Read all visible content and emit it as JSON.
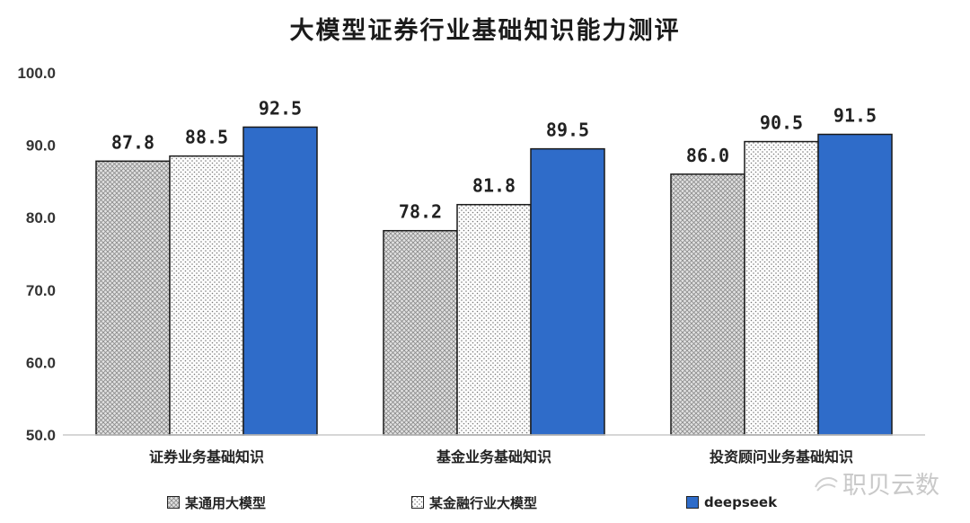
{
  "chart_data": {
    "type": "bar",
    "title": "大模型证券行业基础知识能力测评",
    "categories": [
      "证券业务基础知识",
      "基金业务基础知识",
      "投资顾问业务基础知识"
    ],
    "series": [
      {
        "name": "某通用大模型",
        "values": [
          87.8,
          78.2,
          86.0
        ],
        "color": "#d6d6d6",
        "pattern": "crosshatch"
      },
      {
        "name": "某金融行业大模型",
        "values": [
          88.5,
          81.8,
          90.5
        ],
        "color": "#ffffff",
        "pattern": "dots"
      },
      {
        "name": "deepseek",
        "values": [
          92.5,
          89.5,
          91.5
        ],
        "color": "#2f6cc9",
        "pattern": "solid"
      }
    ],
    "ylim": [
      50,
      100
    ],
    "yticks": [
      "50.0",
      "60.0",
      "70.0",
      "80.0",
      "90.0",
      "100.0"
    ],
    "data_labels": true,
    "grid": false,
    "legend_position": "bottom"
  },
  "watermark": {
    "text": "职贝云数"
  }
}
